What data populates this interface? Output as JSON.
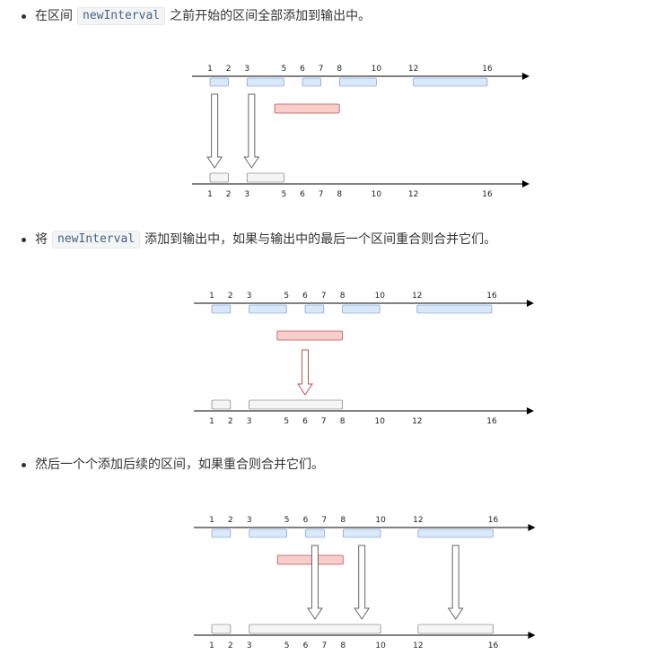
{
  "scale": {
    "ticks": [
      {
        "value": 1,
        "label": "1"
      },
      {
        "value": 2,
        "label": "2"
      },
      {
        "value": 3,
        "label": "3"
      },
      {
        "value": 5,
        "label": "5"
      },
      {
        "value": 6,
        "label": "6"
      },
      {
        "value": 7,
        "label": "7"
      },
      {
        "value": 8,
        "label": "8"
      },
      {
        "value": 10,
        "label": "10"
      },
      {
        "value": 12,
        "label": "12"
      },
      {
        "value": 16,
        "label": "16"
      }
    ]
  },
  "colors": {
    "interval_fill": "#dae8fc",
    "interval_stroke": "#6c8ebf",
    "new_fill": "#f8cecc",
    "new_stroke": "#b85450",
    "output_fill": "#f5f5f5",
    "output_stroke": "#666666",
    "arrow_red": "#b85450",
    "arrow_gray": "#666666",
    "axis": "#000000"
  },
  "steps": [
    {
      "text_before": "在区间",
      "code": "newInterval",
      "text_after": "之前开始的区间全部添加到输出中。",
      "diagram": {
        "intervals": [
          [
            1,
            2
          ],
          [
            3,
            5
          ],
          [
            6,
            7
          ],
          [
            8,
            10
          ],
          [
            12,
            16
          ]
        ],
        "new_interval": [
          4.5,
          8
        ],
        "arrows": [
          {
            "at": 1.25,
            "color": "gray"
          },
          {
            "at": 3.25,
            "color": "gray"
          }
        ],
        "output": [
          [
            1,
            2
          ],
          [
            3,
            5
          ]
        ]
      }
    },
    {
      "text_before": "将",
      "code": "newInterval",
      "text_after": "添加到输出中，如果与输出中的最后一个区间重合则合并它们。",
      "diagram": {
        "intervals": [
          [
            1,
            2
          ],
          [
            3,
            5
          ],
          [
            6,
            7
          ],
          [
            8,
            10
          ],
          [
            12,
            16
          ]
        ],
        "new_interval": [
          4.5,
          8
        ],
        "arrows": [
          {
            "at": 6,
            "color": "red"
          }
        ],
        "output": [
          [
            1,
            2
          ],
          [
            3,
            8
          ]
        ]
      }
    },
    {
      "text_before": "然后一个个添加后续的区间，如果重合则合并它们。",
      "code": "",
      "text_after": "",
      "diagram": {
        "intervals": [
          [
            1,
            2
          ],
          [
            3,
            5
          ],
          [
            6,
            7
          ],
          [
            8,
            10
          ],
          [
            12,
            16
          ]
        ],
        "new_interval": [
          4.5,
          8
        ],
        "arrows": [
          {
            "at": 6.5,
            "color": "gray"
          },
          {
            "at": 9,
            "color": "gray"
          },
          {
            "at": 14,
            "color": "gray"
          }
        ],
        "output": [
          [
            1,
            2
          ],
          [
            3,
            10
          ],
          [
            12,
            16
          ]
        ]
      }
    }
  ]
}
